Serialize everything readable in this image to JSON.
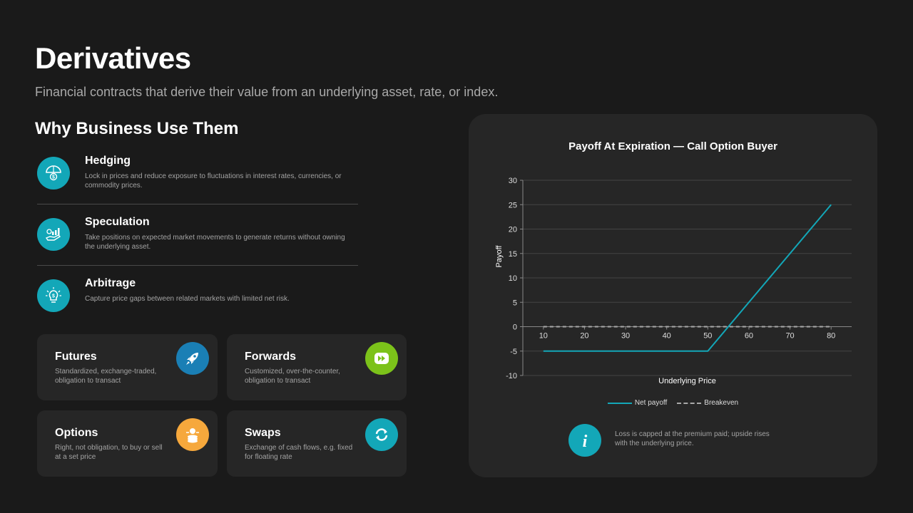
{
  "header": {
    "title": "Derivatives",
    "subtitle": "Financial contracts that derive their value from an underlying asset, rate, or index."
  },
  "section_title": "Why Business Use Them",
  "reasons": [
    {
      "title": "Hedging",
      "desc": "Lock in prices and reduce exposure to fluctuations in interest rates, currencies, or commodity prices.",
      "icon": "umbrella-dollar-icon"
    },
    {
      "title": "Speculation",
      "desc": "Take positions on expected market movements to generate returns without owning the underlying asset.",
      "icon": "hand-chart-icon"
    },
    {
      "title": "Arbitrage",
      "desc": "Capture price gaps between related markets with limited net risk.",
      "icon": "lightbulb-dollar-icon"
    }
  ],
  "cards": [
    {
      "title": "Futures",
      "desc": "Standardized, exchange-traded, obligation to transact",
      "icon": "rocket-icon",
      "color": "#1a7fb5"
    },
    {
      "title": "Forwards",
      "desc": "Customized, over-the-counter, obligation to transact",
      "icon": "fast-forward-icon",
      "color": "#7cc21a"
    },
    {
      "title": "Options",
      "desc": "Right, not obligation, to buy or sell at a set price",
      "icon": "coins-icon",
      "color": "#f6a83c"
    },
    {
      "title": "Swaps",
      "desc": "Exchange of cash flows, e.g. fixed for floating rate",
      "icon": "refresh-icon",
      "color": "#13a7b8"
    }
  ],
  "colors": {
    "accent": "#13a7b8",
    "background": "#1a1a1a",
    "panel": "#262626"
  },
  "chart_data": {
    "type": "line",
    "title": "Payoff At Expiration — Call Option Buyer",
    "xlabel": "Underlying Price",
    "ylabel": "Payoff",
    "xlim": [
      5,
      85
    ],
    "ylim": [
      -10,
      30
    ],
    "xticks": [
      10,
      20,
      30,
      40,
      50,
      60,
      70,
      80
    ],
    "yticks": [
      -10,
      -5,
      0,
      5,
      10,
      15,
      20,
      25,
      30
    ],
    "grid": true,
    "legend_position": "bottom",
    "series": [
      {
        "name": "Net payoff",
        "color": "#13a7b8",
        "style": "solid",
        "x": [
          10,
          50,
          80
        ],
        "y": [
          -5,
          -5,
          25
        ]
      },
      {
        "name": "Breakeven",
        "color": "#a9a9a9",
        "style": "dashed",
        "x": [
          10,
          80
        ],
        "y": [
          0,
          0
        ]
      }
    ]
  },
  "info_note": "Loss is capped at the premium paid; upside rises with the underlying price."
}
